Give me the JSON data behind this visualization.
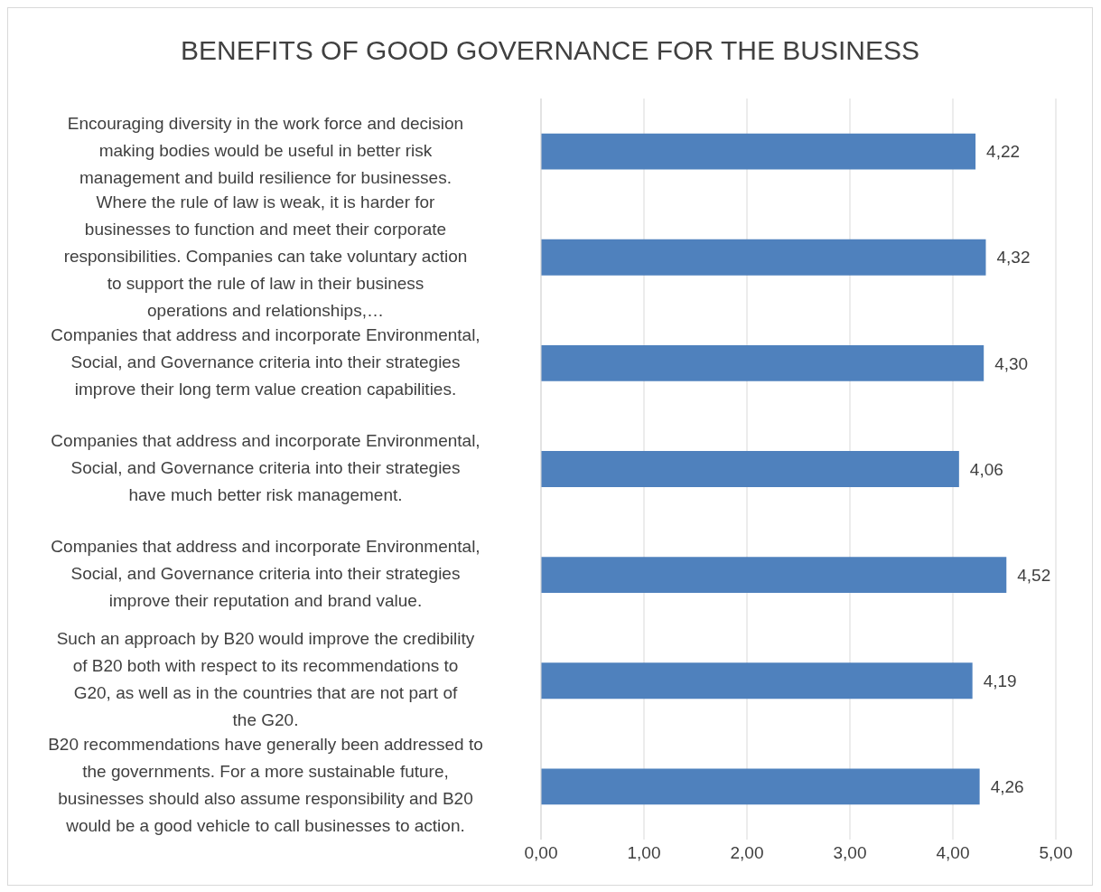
{
  "chart_data": {
    "type": "bar",
    "orientation": "horizontal",
    "title": "BENEFITS OF GOOD GOVERNANCE FOR THE BUSINESS",
    "categories": [
      "Encouraging diversity in the work force and decision making bodies would be useful in better risk management and build resilience for businesses.",
      "Where the rule of law is weak, it is harder for businesses to function and meet their corporate responsibilities. Companies can take voluntary action to support the rule of law in their business operations and relationships,…",
      "Companies that address and incorporate Environmental, Social, and Governance criteria into their strategies improve their long term value creation capabilities.",
      "Companies that address and incorporate Environmental, Social, and Governance criteria into their strategies have much better risk management.",
      "Companies that address and incorporate Environmental, Social, and Governance criteria into their strategies improve their reputation and brand value.",
      "Such an approach by B20 would improve the credibility of B20 both with respect to its recommendations to G20, as well as in the countries that are not part of the G20.",
      "B20 recommendations have generally been addressed to the governments.  For a more sustainable future, businesses should also assume responsibility and B20 would be a good vehicle to call businesses to action."
    ],
    "values": [
      4.22,
      4.32,
      4.3,
      4.06,
      4.52,
      4.19,
      4.26
    ],
    "value_labels": [
      "4,22",
      "4,32",
      "4,30",
      "4,06",
      "4,52",
      "4,19",
      "4,26"
    ],
    "color": "#4f81bd",
    "xlim": [
      0,
      5
    ],
    "xticks": [
      {
        "value": 0,
        "label": "0,00"
      },
      {
        "value": 1,
        "label": "1,00"
      },
      {
        "value": 2,
        "label": "2,00"
      },
      {
        "value": 3,
        "label": "3,00"
      },
      {
        "value": 4,
        "label": "4,00"
      },
      {
        "value": 5,
        "label": "5,00"
      }
    ],
    "grid": "x"
  }
}
